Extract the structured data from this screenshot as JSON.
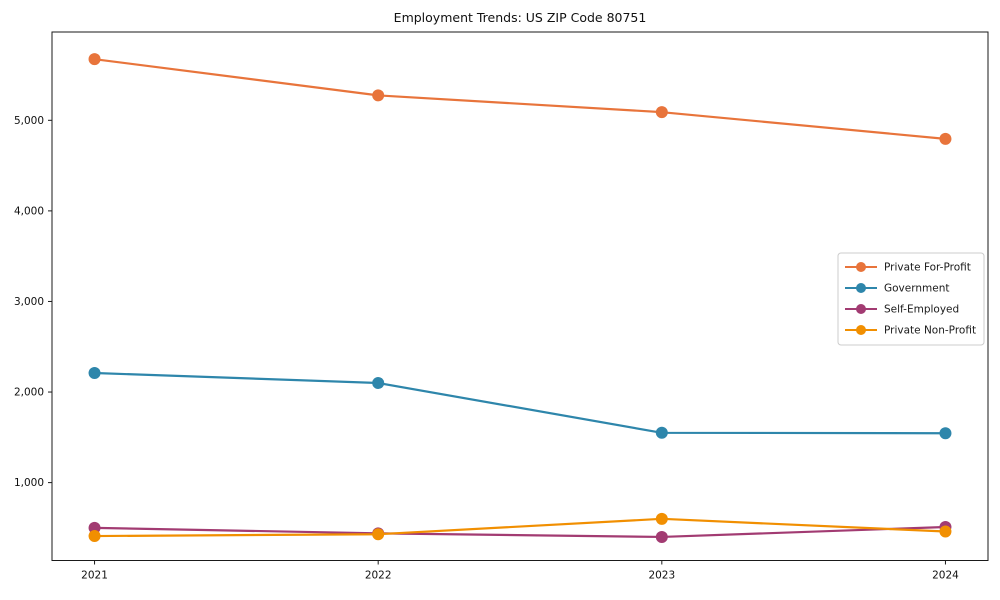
{
  "chart_data": {
    "type": "line",
    "title": "Employment Trends: US ZIP Code 80751",
    "x": [
      2021,
      2022,
      2023,
      2024
    ],
    "x_tick_labels": [
      "2021",
      "2022",
      "2023",
      "2024"
    ],
    "y_ticks": [
      1000,
      2000,
      3000,
      4000,
      5000
    ],
    "y_tick_labels": [
      "1,000",
      "2,000",
      "3,000",
      "4,000",
      "5,000"
    ],
    "xlim": [
      2020.85,
      2024.15
    ],
    "ylim": [
      140,
      5975
    ],
    "grid": false,
    "legend_position": "center-right",
    "marker": "circle",
    "axis_color": "#1a1a1a",
    "legend_border_color": "#cccccc",
    "series": [
      {
        "name": "Private For-Profit",
        "color": "#E8743B",
        "values": [
          5675,
          5275,
          5090,
          4795
        ]
      },
      {
        "name": "Government",
        "color": "#2E86AB",
        "values": [
          2210,
          2100,
          1550,
          1545
        ]
      },
      {
        "name": "Self-Employed",
        "color": "#A23B72",
        "values": [
          500,
          440,
          400,
          510
        ]
      },
      {
        "name": "Private Non-Profit",
        "color": "#F18F01",
        "values": [
          410,
          430,
          600,
          460
        ]
      }
    ]
  }
}
